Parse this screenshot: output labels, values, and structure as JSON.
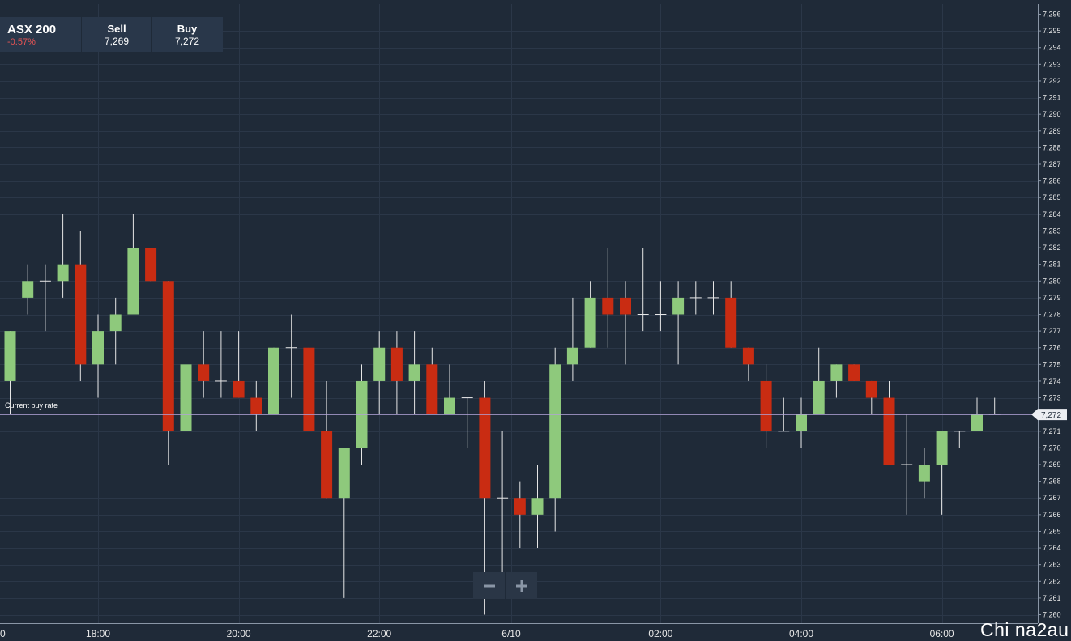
{
  "instrument": {
    "name": "ASX 200",
    "change": "-0.57%"
  },
  "quote": {
    "sell_label": "Sell",
    "sell_value": "7,269",
    "buy_label": "Buy",
    "buy_value": "7,272"
  },
  "current_rate": {
    "label": "Current buy rate",
    "value_label": "7,272",
    "value": 7272
  },
  "zoom": {
    "out_icon": "minus-icon",
    "in_icon": "plus-icon"
  },
  "watermark": "Chi na2au",
  "colors": {
    "background": "#1f2a38",
    "up": "#8ec97c",
    "down": "#c92c12",
    "rate_line": "#b3a3d8",
    "grid": "#2b3748"
  },
  "chart_data": {
    "type": "candlestick",
    "y_range": [
      7260,
      7296
    ],
    "y_ticks": [
      7260,
      7261,
      7262,
      7263,
      7264,
      7265,
      7266,
      7267,
      7268,
      7269,
      7270,
      7271,
      7272,
      7273,
      7274,
      7275,
      7276,
      7277,
      7278,
      7279,
      7280,
      7281,
      7282,
      7283,
      7284,
      7285,
      7286,
      7287,
      7288,
      7289,
      7290,
      7291,
      7292,
      7293,
      7294,
      7295,
      7296
    ],
    "x_tick_labels": [
      "0",
      "18:00",
      "20:00",
      "22:00",
      "6/10",
      "02:00",
      "04:00",
      "06:00"
    ],
    "x_tick_index": [
      -0.6,
      5,
      13,
      21,
      28.5,
      37,
      45,
      53
    ],
    "candles": [
      {
        "o": 7274,
        "h": 7277,
        "l": 7272,
        "c": 7277
      },
      {
        "o": 7279,
        "h": 7281,
        "l": 7278,
        "c": 7280
      },
      {
        "o": 7280,
        "h": 7281,
        "l": 7277,
        "c": 7280
      },
      {
        "o": 7280,
        "h": 7284,
        "l": 7279,
        "c": 7281
      },
      {
        "o": 7281,
        "h": 7283,
        "l": 7274,
        "c": 7275
      },
      {
        "o": 7275,
        "h": 7278,
        "l": 7273,
        "c": 7277
      },
      {
        "o": 7277,
        "h": 7279,
        "l": 7275,
        "c": 7278
      },
      {
        "o": 7278,
        "h": 7284,
        "l": 7278,
        "c": 7282
      },
      {
        "o": 7282,
        "h": 7282,
        "l": 7280,
        "c": 7280
      },
      {
        "o": 7280,
        "h": 7280,
        "l": 7269,
        "c": 7271
      },
      {
        "o": 7271,
        "h": 7275,
        "l": 7270,
        "c": 7275
      },
      {
        "o": 7275,
        "h": 7277,
        "l": 7273,
        "c": 7274
      },
      {
        "o": 7274,
        "h": 7277,
        "l": 7273,
        "c": 7274
      },
      {
        "o": 7274,
        "h": 7277,
        "l": 7273,
        "c": 7273
      },
      {
        "o": 7273,
        "h": 7274,
        "l": 7271,
        "c": 7272
      },
      {
        "o": 7272,
        "h": 7276,
        "l": 7272,
        "c": 7276
      },
      {
        "o": 7276,
        "h": 7278,
        "l": 7273,
        "c": 7276
      },
      {
        "o": 7276,
        "h": 7276,
        "l": 7271,
        "c": 7271
      },
      {
        "o": 7271,
        "h": 7274,
        "l": 7267,
        "c": 7267
      },
      {
        "o": 7267,
        "h": 7270,
        "l": 7261,
        "c": 7270
      },
      {
        "o": 7270,
        "h": 7275,
        "l": 7269,
        "c": 7274
      },
      {
        "o": 7274,
        "h": 7277,
        "l": 7272,
        "c": 7276
      },
      {
        "o": 7276,
        "h": 7277,
        "l": 7272,
        "c": 7274
      },
      {
        "o": 7274,
        "h": 7277,
        "l": 7272,
        "c": 7275
      },
      {
        "o": 7275,
        "h": 7276,
        "l": 7272,
        "c": 7272
      },
      {
        "o": 7272,
        "h": 7275,
        "l": 7272,
        "c": 7273
      },
      {
        "o": 7273,
        "h": 7273,
        "l": 7270,
        "c": 7273
      },
      {
        "o": 7273,
        "h": 7274,
        "l": 7260,
        "c": 7267
      },
      {
        "o": 7267,
        "h": 7271,
        "l": 7262,
        "c": 7267
      },
      {
        "o": 7267,
        "h": 7268,
        "l": 7264,
        "c": 7266
      },
      {
        "o": 7266,
        "h": 7269,
        "l": 7264,
        "c": 7267
      },
      {
        "o": 7267,
        "h": 7276,
        "l": 7265,
        "c": 7275
      },
      {
        "o": 7275,
        "h": 7279,
        "l": 7274,
        "c": 7276
      },
      {
        "o": 7276,
        "h": 7280,
        "l": 7276,
        "c": 7279
      },
      {
        "o": 7279,
        "h": 7282,
        "l": 7276,
        "c": 7278
      },
      {
        "o": 7279,
        "h": 7280,
        "l": 7275,
        "c": 7278
      },
      {
        "o": 7278,
        "h": 7282,
        "l": 7277,
        "c": 7278
      },
      {
        "o": 7278,
        "h": 7280,
        "l": 7277,
        "c": 7278
      },
      {
        "o": 7278,
        "h": 7280,
        "l": 7275,
        "c": 7279
      },
      {
        "o": 7279,
        "h": 7280,
        "l": 7278,
        "c": 7279
      },
      {
        "o": 7279,
        "h": 7280,
        "l": 7278,
        "c": 7279
      },
      {
        "o": 7279,
        "h": 7280,
        "l": 7276,
        "c": 7276
      },
      {
        "o": 7276,
        "h": 7276,
        "l": 7274,
        "c": 7275
      },
      {
        "o": 7274,
        "h": 7275,
        "l": 7270,
        "c": 7271
      },
      {
        "o": 7271,
        "h": 7273,
        "l": 7271,
        "c": 7271
      },
      {
        "o": 7271,
        "h": 7273,
        "l": 7270,
        "c": 7272
      },
      {
        "o": 7272,
        "h": 7276,
        "l": 7272,
        "c": 7274
      },
      {
        "o": 7274,
        "h": 7275,
        "l": 7273,
        "c": 7275
      },
      {
        "o": 7275,
        "h": 7275,
        "l": 7274,
        "c": 7274
      },
      {
        "o": 7274,
        "h": 7274,
        "l": 7272,
        "c": 7273
      },
      {
        "o": 7273,
        "h": 7274,
        "l": 7269,
        "c": 7269
      },
      {
        "o": 7269,
        "h": 7272,
        "l": 7266,
        "c": 7269
      },
      {
        "o": 7268,
        "h": 7270,
        "l": 7267,
        "c": 7269
      },
      {
        "o": 7269,
        "h": 7271,
        "l": 7266,
        "c": 7271
      },
      {
        "o": 7271,
        "h": 7271,
        "l": 7270,
        "c": 7271
      },
      {
        "o": 7271,
        "h": 7273,
        "l": 7271,
        "c": 7272
      },
      {
        "o": 7272,
        "h": 7273,
        "l": 7272,
        "c": 7272
      }
    ],
    "grid": true
  }
}
